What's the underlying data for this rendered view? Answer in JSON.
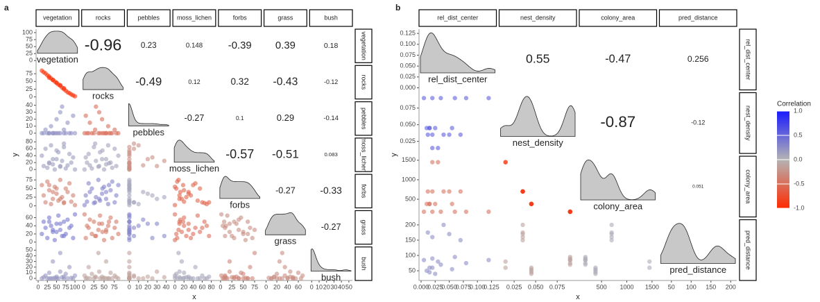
{
  "chart_data": [
    {
      "type": "scatter-matrix",
      "panel": "a",
      "xlabel": "x",
      "ylabel": "y",
      "variables": [
        {
          "name": "vegetation",
          "lim": [
            0,
            105
          ],
          "ticks": [
            0,
            25,
            50,
            75,
            100
          ],
          "values": [
            10,
            15,
            20,
            25,
            30,
            35,
            40,
            45,
            50,
            55,
            60,
            65,
            70,
            75,
            80,
            85,
            90,
            95,
            100,
            50,
            60,
            40,
            70,
            30
          ]
        },
        {
          "name": "rocks",
          "lim": [
            0,
            95
          ],
          "ticks": [
            0,
            25,
            50,
            75
          ],
          "values": [
            85,
            80,
            76,
            70,
            66,
            60,
            55,
            50,
            45,
            40,
            36,
            30,
            25,
            20,
            15,
            12,
            8,
            5,
            2,
            46,
            38,
            55,
            28,
            62
          ]
        },
        {
          "name": "pebbles",
          "lim": [
            0,
            42
          ],
          "ticks": [
            0,
            10,
            20,
            30,
            40
          ],
          "values": [
            0,
            0,
            5,
            0,
            0,
            10,
            0,
            0,
            20,
            0,
            0,
            38,
            0,
            0,
            15,
            0,
            0,
            25,
            0,
            0,
            30,
            0,
            5,
            0
          ]
        },
        {
          "name": "moss_lichen",
          "lim": [
            0,
            85
          ],
          "ticks": [
            0,
            20,
            40,
            60,
            80
          ],
          "values": [
            40,
            10,
            60,
            5,
            20,
            70,
            15,
            0,
            30,
            50,
            8,
            25,
            65,
            3,
            12,
            45,
            20,
            35,
            0,
            55,
            10,
            30,
            75,
            18
          ]
        },
        {
          "name": "forbs",
          "lim": [
            0,
            85
          ],
          "ticks": [
            0,
            25,
            50,
            75
          ],
          "values": [
            60,
            30,
            10,
            70,
            45,
            5,
            20,
            55,
            35,
            15,
            75,
            25,
            8,
            50,
            40,
            65,
            12,
            30,
            2,
            50,
            20,
            40,
            10,
            60
          ]
        },
        {
          "name": "grass",
          "lim": [
            0,
            72
          ],
          "ticks": [
            0,
            20,
            40,
            60
          ],
          "values": [
            20,
            50,
            35,
            10,
            60,
            40,
            25,
            5,
            45,
            65,
            30,
            15,
            50,
            20,
            55,
            35,
            40,
            10,
            68,
            25,
            45,
            30,
            15,
            50
          ]
        },
        {
          "name": "bush",
          "lim": [
            0,
            52
          ],
          "ticks": [
            0,
            10,
            20,
            30,
            40,
            50
          ],
          "values": [
            0,
            2,
            5,
            0,
            10,
            0,
            30,
            1,
            3,
            0,
            45,
            2,
            0,
            8,
            0,
            20,
            1,
            0,
            5,
            0,
            12,
            0,
            3,
            0
          ]
        }
      ],
      "correlations": [
        [
          -0.96,
          0.23,
          0.148,
          -0.39,
          0.39,
          0.18
        ],
        [
          -0.49,
          0.12,
          0.32,
          -0.43,
          -0.12
        ],
        [
          -0.27,
          0.1,
          0.29,
          -0.14
        ],
        [
          -0.57,
          -0.51,
          0.083
        ],
        [
          -0.27,
          -0.33
        ],
        [
          -0.27
        ]
      ]
    },
    {
      "type": "scatter-matrix",
      "panel": "b",
      "xlabel": "x",
      "ylabel": "y",
      "variables": [
        {
          "name": "rel_dist_center",
          "lim": [
            0,
            0.13
          ],
          "ticks": [
            {
              "value": 0,
              "label": "0.000"
            },
            0.025,
            {
              "value": 0.05,
              "label": "0.050"
            },
            0.075,
            {
              "value": 0.1,
              "label": "0.100"
            },
            0.125
          ],
          "values": [
            0.005,
            0.01,
            0.012,
            0.015,
            0.02,
            0.02,
            0.025,
            0.03,
            0.035,
            0.04,
            0.05,
            0.055,
            0.06,
            0.07,
            0.08,
            0.02,
            0.015,
            0.12
          ]
        },
        {
          "name": "nest_density",
          "lim": [
            0.01,
            0.095
          ],
          "ticks": [
            0.025,
            {
              "value": 0.05,
              "label": "0.050"
            },
            0.075
          ],
          "values": [
            0.09,
            0.045,
            0.035,
            0.045,
            0.09,
            0.035,
            0.045,
            0.015,
            0.09,
            0.035,
            0.035,
            0.045,
            0.09,
            0.035,
            0.09,
            0.015,
            0.045,
            0.09
          ]
        },
        {
          "name": "colony_area",
          "lim": [
            100,
            1550
          ],
          "ticks": [
            500,
            1000,
            1500
          ],
          "values": [
            180,
            380,
            700,
            380,
            180,
            700,
            380,
            1450,
            180,
            700,
            700,
            380,
            180,
            700,
            180,
            1450,
            380,
            180
          ]
        },
        {
          "name": "pred_distance",
          "lim": [
            25,
            210
          ],
          "ticks": [
            50,
            100,
            150,
            200
          ],
          "values": [
            85,
            50,
            175,
            60,
            90,
            160,
            40,
            80,
            70,
            200,
            170,
            55,
            95,
            150,
            75,
            60,
            45,
            85
          ]
        }
      ],
      "correlations": [
        [
          0.55,
          -0.47,
          0.256
        ],
        [
          -0.87,
          -0.12
        ],
        [
          0.051
        ]
      ],
      "legend": {
        "title": "Correlation",
        "lim": [
          -1,
          1
        ],
        "colors": [
          "#ff2a00",
          "#b4b4b4",
          "#1a1aff"
        ],
        "ticks": [
          {
            "value": 1,
            "label": "1.0"
          },
          0.5,
          {
            "value": 0,
            "label": "0.0"
          },
          -0.5,
          {
            "value": -1,
            "label": "-1.0"
          }
        ]
      }
    }
  ]
}
